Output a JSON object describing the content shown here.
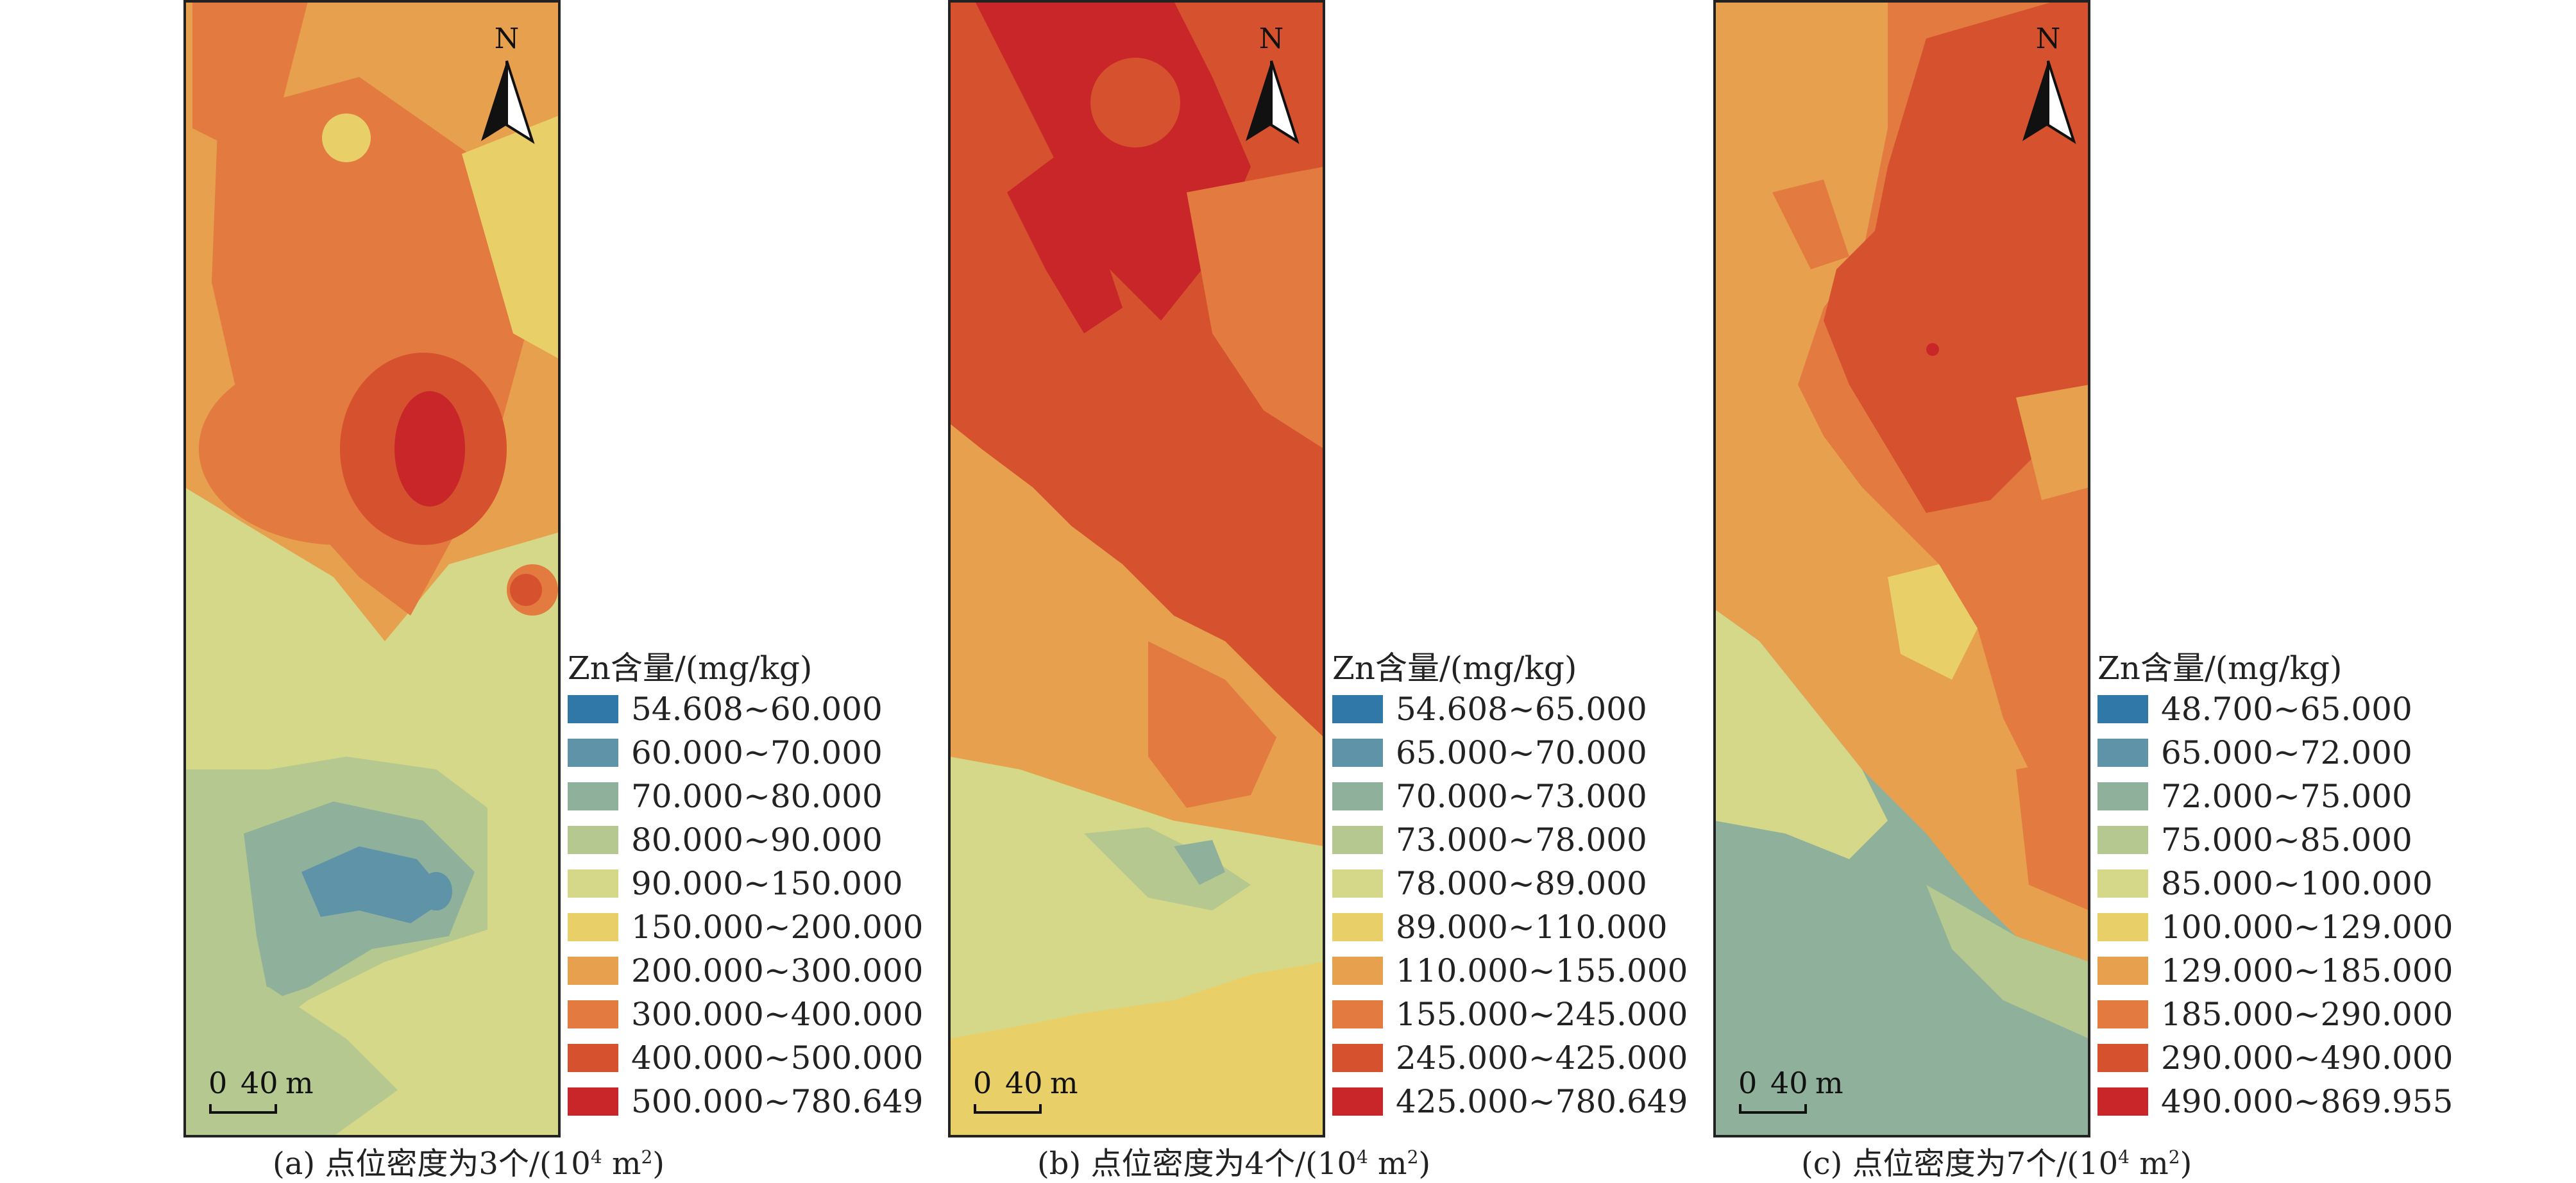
{
  "panels": [
    {
      "id": "a",
      "legend_title": "Zn含量/(mg/kg)",
      "caption": "(a) 点位密度为3个/(10",
      "caption_exp": "4",
      "caption_tail": " m",
      "caption_sq": "2",
      "caption_end": ")",
      "classes": [
        {
          "label": "54.608~60.000",
          "color": "#2f78a8"
        },
        {
          "label": "60.000~70.000",
          "color": "#5f93a8"
        },
        {
          "label": "70.000~80.000",
          "color": "#8fb09a"
        },
        {
          "label": "80.000~90.000",
          "color": "#b4c88f"
        },
        {
          "label": "90.000~150.000",
          "color": "#d4d888"
        },
        {
          "label": "150.000~200.000",
          "color": "#e8cf68"
        },
        {
          "label": "200.000~300.000",
          "color": "#e6a04e"
        },
        {
          "label": "300.000~400.000",
          "color": "#e37a3f"
        },
        {
          "label": "400.000~500.000",
          "color": "#d6522e"
        },
        {
          "label": "500.000~780.649",
          "color": "#c9262a"
        }
      ]
    },
    {
      "id": "b",
      "legend_title": "Zn含量/(mg/kg)",
      "caption": "(b) 点位密度为4个/(10",
      "caption_exp": "4",
      "caption_tail": " m",
      "caption_sq": "2",
      "caption_end": ")",
      "classes": [
        {
          "label": "54.608~65.000",
          "color": "#2f78a8"
        },
        {
          "label": "65.000~70.000",
          "color": "#5f93a8"
        },
        {
          "label": "70.000~73.000",
          "color": "#8fb09a"
        },
        {
          "label": "73.000~78.000",
          "color": "#b4c88f"
        },
        {
          "label": "78.000~89.000",
          "color": "#d4d888"
        },
        {
          "label": "89.000~110.000",
          "color": "#e8cf68"
        },
        {
          "label": "110.000~155.000",
          "color": "#e6a04e"
        },
        {
          "label": "155.000~245.000",
          "color": "#e37a3f"
        },
        {
          "label": "245.000~425.000",
          "color": "#d6522e"
        },
        {
          "label": "425.000~780.649",
          "color": "#c9262a"
        }
      ]
    },
    {
      "id": "c",
      "legend_title": "Zn含量/(mg/kg)",
      "caption": "(c) 点位密度为7个/(10",
      "caption_exp": "4",
      "caption_tail": " m",
      "caption_sq": "2",
      "caption_end": ")",
      "classes": [
        {
          "label": "48.700~65.000",
          "color": "#2f78a8"
        },
        {
          "label": "65.000~72.000",
          "color": "#5f93a8"
        },
        {
          "label": "72.000~75.000",
          "color": "#8fb09a"
        },
        {
          "label": "75.000~85.000",
          "color": "#b4c88f"
        },
        {
          "label": "85.000~100.000",
          "color": "#d4d888"
        },
        {
          "label": "100.000~129.000",
          "color": "#e8cf68"
        },
        {
          "label": "129.000~185.000",
          "color": "#e6a04e"
        },
        {
          "label": "185.000~290.000",
          "color": "#e37a3f"
        },
        {
          "label": "290.000~490.000",
          "color": "#d6522e"
        },
        {
          "label": "490.000~869.955",
          "color": "#c9262a"
        }
      ]
    }
  ],
  "north_label": "N",
  "scale_zero": "0",
  "scale_value": "40",
  "scale_unit": "m"
}
